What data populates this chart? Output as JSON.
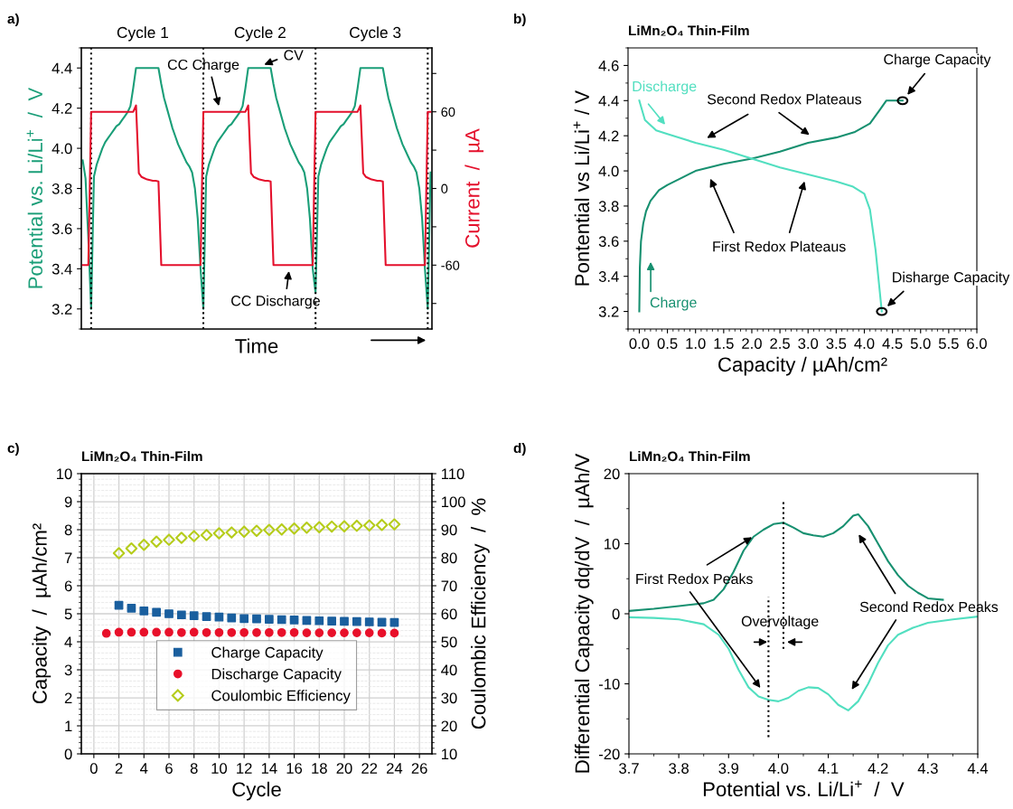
{
  "chart_data": [
    {
      "type": "line",
      "xlabel": "Time",
      "ylabel": "Potential vs. Li/Li$^{+}$  /  V",
      "y2label": "Current  /  µA",
      "categories": [
        null,
        null,
        null,
        null,
        null,
        null,
        null,
        null,
        null,
        null,
        null,
        null,
        null,
        null,
        null,
        null,
        null,
        null,
        null,
        null,
        null,
        null,
        null,
        null,
        null,
        null,
        null,
        null,
        null,
        null,
        null,
        null,
        null,
        null,
        null,
        null,
        null,
        null,
        null,
        null,
        null,
        null,
        null,
        null,
        null,
        null,
        null,
        null,
        null,
        null,
        null,
        null,
        null,
        null,
        null,
        null,
        null,
        null,
        null,
        null,
        null,
        null,
        null,
        null,
        null,
        null,
        null,
        null,
        null,
        null,
        null,
        null,
        null,
        null,
        null,
        null,
        null,
        null,
        null,
        null,
        null,
        null,
        null,
        null,
        null,
        null,
        null,
        null,
        null,
        null,
        null,
        null,
        null,
        null,
        null,
        null,
        null,
        null,
        null,
        null,
        null,
        null,
        null,
        null,
        null,
        null,
        null,
        null,
        null,
        null,
        null,
        null,
        null,
        null,
        null,
        null,
        null,
        null,
        null,
        null,
        null,
        null,
        null,
        null,
        null
      ],
      "series": [
        {
          "color": "#1a9e78",
          "values": [
            3.94,
            3.85,
            3.55,
            3.2,
            3.86,
            3.92,
            3.96,
            4.0,
            4.03,
            4.05,
            4.07,
            4.09,
            4.11,
            4.12,
            4.14,
            4.16,
            4.18,
            4.21,
            4.3,
            4.4,
            4.4,
            4.4,
            4.4,
            4.4,
            4.4,
            4.4,
            4.4,
            4.4,
            4.32,
            4.25,
            4.2,
            4.15,
            4.1,
            4.06,
            4.02,
            3.99,
            3.96,
            3.93,
            3.91,
            3.88,
            3.8,
            3.65,
            3.4,
            3.2,
            3.86,
            3.92,
            3.96,
            4.0,
            4.03,
            4.05,
            4.07,
            4.09,
            4.11,
            4.12,
            4.14,
            4.16,
            4.18,
            4.21,
            4.3,
            4.4,
            4.4,
            4.4,
            4.4,
            4.4,
            4.4,
            4.4,
            4.4,
            4.4,
            4.32,
            4.25,
            4.2,
            4.15,
            4.1,
            4.06,
            4.02,
            3.99,
            3.96,
            3.93,
            3.91,
            3.88,
            3.8,
            3.65,
            3.4,
            3.28,
            3.86,
            3.92,
            3.96,
            4.0,
            4.03,
            4.05,
            4.07,
            4.09,
            4.11,
            4.12,
            4.14,
            4.16,
            4.18,
            4.21,
            4.3,
            4.4,
            4.4,
            4.4,
            4.4,
            4.4,
            4.4,
            4.4,
            4.4,
            4.4,
            4.32,
            4.25,
            4.2,
            4.15,
            4.1,
            4.06,
            4.02,
            3.99,
            3.96,
            3.93,
            3.91,
            3.88,
            3.8,
            3.65,
            3.4,
            3.2,
            3.88
          ]
        },
        {
          "color": "#e4102c",
          "axis": "y2",
          "values": [
            -60,
            -60,
            -60,
            60,
            60,
            60,
            60,
            60,
            60,
            60,
            60,
            60,
            60,
            60,
            60,
            60,
            60,
            60,
            60,
            65,
            12,
            9,
            8,
            7,
            6.5,
            6,
            6,
            5.5,
            -60,
            -60,
            -60,
            -60,
            -60,
            -60,
            -60,
            -60,
            -60,
            -60,
            -60,
            -60,
            -60,
            -60,
            -60,
            60,
            60,
            60,
            60,
            60,
            60,
            60,
            60,
            60,
            60,
            60,
            60,
            60,
            60,
            60,
            60,
            65,
            12,
            9,
            8,
            7,
            6.5,
            6,
            6,
            5.5,
            -60,
            -60,
            -60,
            -60,
            -60,
            -60,
            -60,
            -60,
            -60,
            -60,
            -60,
            -60,
            -60,
            -60,
            -60,
            60,
            60,
            60,
            60,
            60,
            60,
            60,
            60,
            60,
            60,
            60,
            60,
            60,
            60,
            60,
            60,
            65,
            12,
            9,
            8,
            7,
            6.5,
            6,
            6,
            5.5,
            -60,
            -60,
            -60,
            -60,
            -60,
            -60,
            -60,
            -60,
            -60,
            -60,
            -60,
            -60,
            -60,
            -60,
            -60,
            60,
            60
          ]
        }
      ],
      "ylim": [
        3.1,
        4.5
      ],
      "yticks": [
        3.2,
        3.4,
        3.6,
        3.8,
        {
          "value": 4.0,
          "label": "4.0"
        },
        4.2,
        4.4
      ],
      "y2lim": [
        -110,
        110
      ],
      "y2ticks": [
        {
          "value": 90,
          "label": null
        },
        60,
        {
          "value": 30,
          "label": null
        },
        0,
        {
          "value": -30,
          "label": null
        },
        -60,
        {
          "value": -90,
          "label": null
        }
      ],
      "annotations": [
        "a)",
        "Cycle 1",
        "Cycle 2",
        "Cycle 3",
        "CC Charge",
        "CV",
        "CC Discharge"
      ],
      "legend": false,
      "grid": false
    },
    {
      "type": "line",
      "title": "LiMn₂O₄ Thin-Film",
      "xlabel": "Capacity / µAh/cm²",
      "ylabel": "Pontential vs Li/Li$^{+}$ / V",
      "series": [
        {
          "color": "#179070",
          "x": [
            0,
            0.01,
            0.03,
            0.07,
            0.12,
            0.2,
            0.35,
            0.5,
            0.75,
            1.0,
            1.5,
            2.0,
            2.5,
            3.0,
            3.5,
            3.82,
            4.1,
            4.28,
            4.39,
            4.68
          ],
          "values": [
            3.2,
            3.45,
            3.6,
            3.7,
            3.77,
            3.83,
            3.89,
            3.92,
            3.96,
            4.0,
            4.04,
            4.07,
            4.11,
            4.16,
            4.19,
            4.22,
            4.27,
            4.35,
            4.4,
            4.4
          ]
        },
        {
          "color": "#52dfc0",
          "x": [
            0,
            0.1,
            0.3,
            0.5,
            1.0,
            1.5,
            2.0,
            2.5,
            3.0,
            3.5,
            3.8,
            4.0,
            4.1,
            4.2,
            4.31
          ],
          "values": [
            4.4,
            4.29,
            4.23,
            4.21,
            4.16,
            4.12,
            4.07,
            4.02,
            3.98,
            3.94,
            3.91,
            3.87,
            3.78,
            3.55,
            3.2
          ]
        }
      ],
      "xlim": [
        -0.2,
        6.0
      ],
      "xticks": [
        {
          "value": 0,
          "label": "0.0"
        },
        0.5,
        {
          "value": 1,
          "label": "1.0"
        },
        1.5,
        {
          "value": 2,
          "label": "2.0"
        },
        2.5,
        {
          "value": 3,
          "label": "3.0"
        },
        3.5,
        {
          "value": 4,
          "label": "4.0"
        },
        4.5,
        {
          "value": 5,
          "label": "5.0"
        },
        5.5,
        {
          "value": 6,
          "label": "6.0"
        }
      ],
      "ylim": [
        3.1,
        4.7
      ],
      "yticks": [
        3.2,
        3.4,
        3.6,
        3.8,
        {
          "value": 4.0,
          "label": "4.0"
        },
        4.2,
        4.4,
        4.6
      ],
      "annotations": [
        "b)",
        "Discharge",
        "Charge",
        "Second Redox Plateaus",
        "First Redox Plateaus",
        {
          "text": "Charge Capacity",
          "x": 4.68,
          "y": 4.4
        },
        {
          "text": "Disharge Capacity",
          "x": 4.31,
          "y": 3.2
        }
      ],
      "legend": false,
      "grid": false
    },
    {
      "type": "scatter",
      "title": "LiMn₂O₄ Thin-Film",
      "xlabel": "Cycle",
      "ylabel": "Capacity  /  µAh/cm²",
      "y2label": "Coulombic Efficiency  /  %",
      "series": [
        {
          "name": "Charge Capacity",
          "color": "#1a5f9e",
          "marker": "square",
          "x": [
            2,
            3,
            4,
            5,
            6,
            7,
            8,
            9,
            10,
            11,
            12,
            13,
            14,
            15,
            16,
            17,
            18,
            19,
            20,
            21,
            22,
            23,
            24
          ],
          "values": [
            5.3,
            5.2,
            5.1,
            5.05,
            5.0,
            4.96,
            4.93,
            4.9,
            4.88,
            4.85,
            4.83,
            4.82,
            4.8,
            4.79,
            4.78,
            4.76,
            4.75,
            4.74,
            4.73,
            4.72,
            4.71,
            4.7,
            4.69
          ]
        },
        {
          "name": "Discharge Capacity",
          "color": "#e8102a",
          "marker": "circle",
          "x": [
            1,
            2,
            3,
            4,
            5,
            6,
            7,
            8,
            9,
            10,
            11,
            12,
            13,
            14,
            15,
            16,
            17,
            18,
            19,
            20,
            21,
            22,
            23,
            24
          ],
          "values": [
            4.3,
            4.34,
            4.34,
            4.34,
            4.34,
            4.34,
            4.33,
            4.34,
            4.33,
            4.33,
            4.33,
            4.33,
            4.33,
            4.33,
            4.33,
            4.33,
            4.32,
            4.32,
            4.32,
            4.32,
            4.32,
            4.32,
            4.31,
            4.31
          ]
        },
        {
          "name": "Coulombic Efficiency",
          "color": "#b5cc1a",
          "marker": "diamond",
          "axis": "y2",
          "x": [
            2,
            3,
            4,
            5,
            6,
            7,
            8,
            9,
            10,
            11,
            12,
            13,
            14,
            15,
            16,
            17,
            18,
            19,
            20,
            21,
            22,
            23,
            24
          ],
          "values": [
            81.6,
            83.3,
            84.6,
            85.7,
            86.4,
            87.1,
            87.7,
            88.1,
            88.7,
            89.0,
            89.3,
            89.6,
            89.9,
            90.1,
            90.4,
            90.7,
            90.9,
            91.1,
            91.2,
            91.4,
            91.5,
            91.7,
            91.9
          ]
        }
      ],
      "xlim": [
        -1,
        27
      ],
      "xticks": [
        0,
        2,
        4,
        6,
        8,
        10,
        12,
        14,
        16,
        18,
        20,
        22,
        24,
        26
      ],
      "ylim": [
        0,
        10
      ],
      "yticks": [
        0,
        1,
        2,
        3,
        4,
        5,
        6,
        7,
        8,
        9,
        10
      ],
      "y2lim": [
        10,
        110
      ],
      "y2ticks": [
        10,
        20,
        30,
        40,
        50,
        60,
        70,
        80,
        90,
        100,
        110
      ],
      "annotations": [
        "c)"
      ],
      "legend": "bottom",
      "grid": true
    },
    {
      "type": "line",
      "title": "LiMn₂O₄ Thin-Film",
      "xlabel": "Potential vs. Li/Li$^{+}$  /  V",
      "ylabel": "Differential Capacity dq/dV  /  µAh/V",
      "series": [
        {
          "color": "#179070",
          "x": [
            3.7,
            3.75,
            3.8,
            3.85,
            3.87,
            3.89,
            3.91,
            3.93,
            3.95,
            3.97,
            3.99,
            4.01,
            4.03,
            4.05,
            4.07,
            4.09,
            4.11,
            4.13,
            4.15,
            4.16,
            4.18,
            4.2,
            4.22,
            4.24,
            4.26,
            4.28,
            4.3,
            4.33
          ],
          "values": [
            0.4,
            0.7,
            1.1,
            1.5,
            2.0,
            3.5,
            6,
            9,
            11,
            12,
            12.8,
            13,
            12.3,
            11.5,
            11.2,
            11,
            11.5,
            12.5,
            14,
            14.2,
            12.5,
            10,
            7.5,
            5.5,
            4,
            3,
            2.2,
            2.0
          ]
        },
        {
          "color": "#52dfc0",
          "x": [
            3.7,
            3.75,
            3.8,
            3.85,
            3.88,
            3.9,
            3.92,
            3.94,
            3.96,
            3.98,
            4.0,
            4.02,
            4.04,
            4.06,
            4.08,
            4.1,
            4.12,
            4.14,
            4.16,
            4.18,
            4.2,
            4.22,
            4.24,
            4.27,
            4.3,
            4.35,
            4.4
          ],
          "values": [
            -0.5,
            -0.6,
            -0.8,
            -1.5,
            -3,
            -5,
            -8,
            -10.5,
            -11.8,
            -12.3,
            -12.5,
            -12,
            -11,
            -10.5,
            -10.6,
            -11.5,
            -13,
            -13.8,
            -12.5,
            -10,
            -7,
            -4.5,
            -3,
            -2,
            -1.3,
            -0.8,
            -0.4
          ]
        }
      ],
      "xlim": [
        3.7,
        4.4
      ],
      "xticks": [
        3.7,
        3.8,
        3.9,
        {
          "value": 4.0,
          "label": "4.0"
        },
        4.1,
        4.2,
        4.3,
        4.4
      ],
      "ylim": [
        -20,
        20
      ],
      "yticks": [
        -20,
        -10,
        0,
        10,
        20
      ],
      "ref_lines": [
        {
          "axis": "x",
          "value": 4.01,
          "line_style": "dotted",
          "color": "#000000"
        },
        {
          "axis": "x",
          "value": 3.98,
          "line_style": "dotted",
          "color": "#000000"
        }
      ],
      "annotations": [
        "d)",
        {
          "text": "First Redox Peaks",
          "x": 3.96,
          "y": 11.5
        },
        "Second Redox Peaks",
        "Overvoltage"
      ],
      "legend": false,
      "grid": false
    }
  ]
}
